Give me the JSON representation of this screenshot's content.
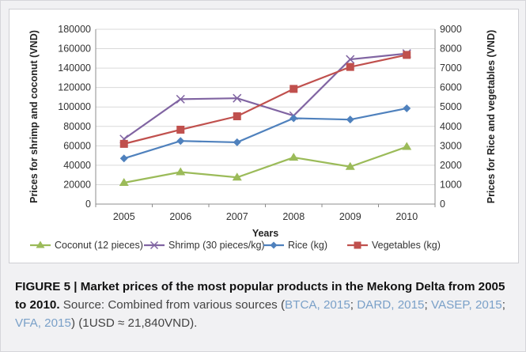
{
  "chart_data": {
    "type": "line",
    "xlabel": "Years",
    "ylabel_left": "Prices for shrimp and coconut (VND)",
    "ylabel_right": "Prices for Rice and vegetables (VND)",
    "categories": [
      "2005",
      "2006",
      "2007",
      "2008",
      "2009",
      "2010"
    ],
    "y_left": {
      "min": 0,
      "max": 180000,
      "step": 20000,
      "ticks": [
        "0",
        "20000",
        "40000",
        "60000",
        "80000",
        "100000",
        "120000",
        "140000",
        "160000",
        "180000"
      ]
    },
    "y_right": {
      "min": 0,
      "max": 9000,
      "step": 1000,
      "ticks": [
        "0",
        "1000",
        "2000",
        "3000",
        "4000",
        "5000",
        "6000",
        "7000",
        "8000",
        "9000"
      ]
    },
    "grid": true,
    "legend_position": "bottom",
    "series": [
      {
        "name": "Coconut (12 pieces)",
        "axis": "left",
        "color": "#9bbb59",
        "marker": "triangle",
        "values": [
          22000,
          33000,
          27500,
          48000,
          38500,
          59000
        ]
      },
      {
        "name": "Shrimp (30 pieces/kg)",
        "axis": "left",
        "color": "#8064a2",
        "marker": "x",
        "values": [
          67000,
          108000,
          109000,
          91000,
          149000,
          155000
        ]
      },
      {
        "name": "Rice (kg)",
        "axis": "right",
        "color": "#4f81bd",
        "marker": "diamond",
        "values": [
          2350,
          3250,
          3180,
          4420,
          4350,
          4930
        ]
      },
      {
        "name": "Vegetables (kg)",
        "axis": "right",
        "color": "#c0504d",
        "marker": "square",
        "values": [
          3100,
          3830,
          4520,
          5930,
          7060,
          7680
        ]
      }
    ]
  },
  "caption": {
    "label": "FIGURE 5 | Market prices of the most popular products in the Mekong Delta from 2005 to 2010.",
    "source_prefix": " Source: Combined from various sources (",
    "ref1": "BTCA, 2015",
    "sep1": "; ",
    "ref2": "DARD, 2015",
    "sep2": "; ",
    "ref3": "VASEP, 2015",
    "sep3": "; ",
    "ref4": "VFA, 2015",
    "suffix": ") (1USD ≈ 21,840VND)."
  }
}
